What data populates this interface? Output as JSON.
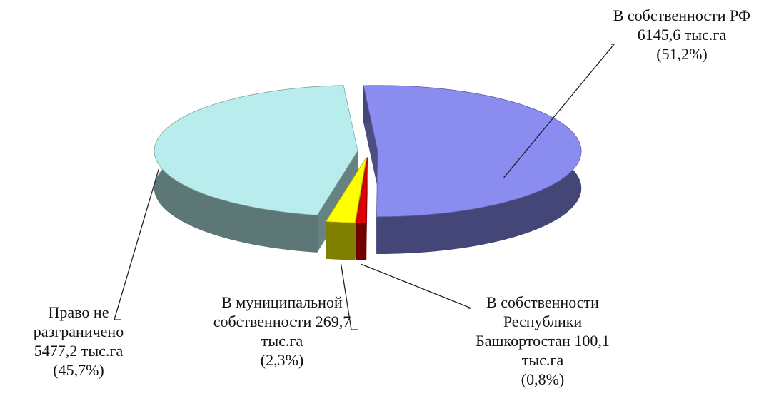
{
  "chart_data": {
    "type": "pie",
    "categories": [
      "В собственности РФ",
      "В собственности Республики Башкортостан",
      "В муниципальной собственности",
      "Право не разграничено"
    ],
    "values": [
      51.2,
      0.8,
      2.3,
      45.7
    ],
    "value_labels": [
      "(51,2%)",
      "(0,8%)",
      "(2,3%)",
      "(45,7%)"
    ],
    "amounts": [
      6145.6,
      100.1,
      269.7,
      5477.2
    ],
    "amount_labels": [
      "6145,6 тыс.га",
      "100,1 тыс.га",
      "269,7 тыс.га",
      "5477,2 тыс.га"
    ],
    "colors": [
      "#8a8cf0",
      "#e00000",
      "#ffff00",
      "#b9ecec"
    ]
  }
}
